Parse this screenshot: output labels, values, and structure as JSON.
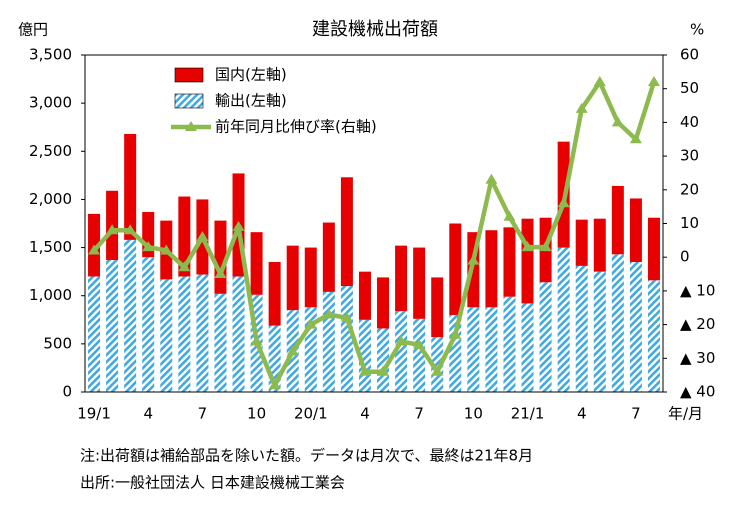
{
  "chart_data": {
    "type": "bar",
    "title": "建設機械出荷額",
    "y_unit": "億円",
    "y2_unit": "%",
    "x_unit": "年/月",
    "categories": [
      "19/1",
      null,
      null,
      "4",
      null,
      null,
      "7",
      null,
      null,
      "10",
      null,
      null,
      "20/1",
      null,
      null,
      "4",
      null,
      null,
      "7",
      null,
      null,
      "10",
      null,
      null,
      "21/1",
      null,
      null,
      "4",
      null,
      null,
      "7",
      null
    ],
    "series": [
      {
        "name": "国内(左軸)",
        "type": "bar",
        "color": "#e60000",
        "values": [
          650,
          720,
          1100,
          470,
          610,
          830,
          780,
          760,
          1070,
          650,
          660,
          670,
          620,
          720,
          1130,
          500,
          530,
          680,
          740,
          620,
          950,
          780,
          800,
          720,
          880,
          670,
          1100,
          480,
          550,
          710,
          660,
          650
        ]
      },
      {
        "name": "輸出(左軸)",
        "type": "bar",
        "color": "#3fa9e0",
        "pattern": "hatch",
        "values": [
          1200,
          1370,
          1580,
          1400,
          1170,
          1200,
          1220,
          1020,
          1200,
          1010,
          690,
          850,
          880,
          1040,
          1100,
          750,
          660,
          840,
          760,
          570,
          800,
          880,
          880,
          990,
          920,
          1140,
          1500,
          1310,
          1250,
          1430,
          1350,
          1160
        ]
      },
      {
        "name": "前年同月比伸び率(右軸)",
        "type": "line",
        "axis": "y2",
        "color": "#8dba4e",
        "values": [
          2,
          8,
          8,
          3,
          2,
          -3,
          6,
          -5,
          9,
          -25,
          -38,
          -28,
          -20,
          -17,
          -18,
          -34,
          -34,
          -25,
          -26,
          -34,
          -23,
          -1,
          23,
          12,
          3,
          3,
          16,
          44,
          52,
          40,
          35,
          52
        ]
      }
    ],
    "ylim": [
      0,
      3500
    ],
    "yticks": [
      0,
      500,
      {
        "value": 1000,
        "label": "1,000"
      },
      {
        "value": 1500,
        "label": "1,500"
      },
      {
        "value": 2000,
        "label": "2,000"
      },
      {
        "value": 2500,
        "label": "2,500"
      },
      {
        "value": 3000,
        "label": "3,000"
      },
      {
        "value": 3500,
        "label": "3,500"
      }
    ],
    "y2lim": [
      -40,
      60
    ],
    "y2ticks": [
      {
        "value": -40,
        "label": "▲ 40"
      },
      {
        "value": -30,
        "label": "▲ 30"
      },
      {
        "value": -20,
        "label": "▲ 20"
      },
      {
        "value": -10,
        "label": "▲ 10"
      },
      0,
      10,
      20,
      30,
      40,
      50,
      60
    ],
    "notes": [
      "注:出荷額は補給部品を除いた額。データは月次で、最終は21年8月",
      "出所:一般社団法人 日本建設機械工業会"
    ]
  }
}
